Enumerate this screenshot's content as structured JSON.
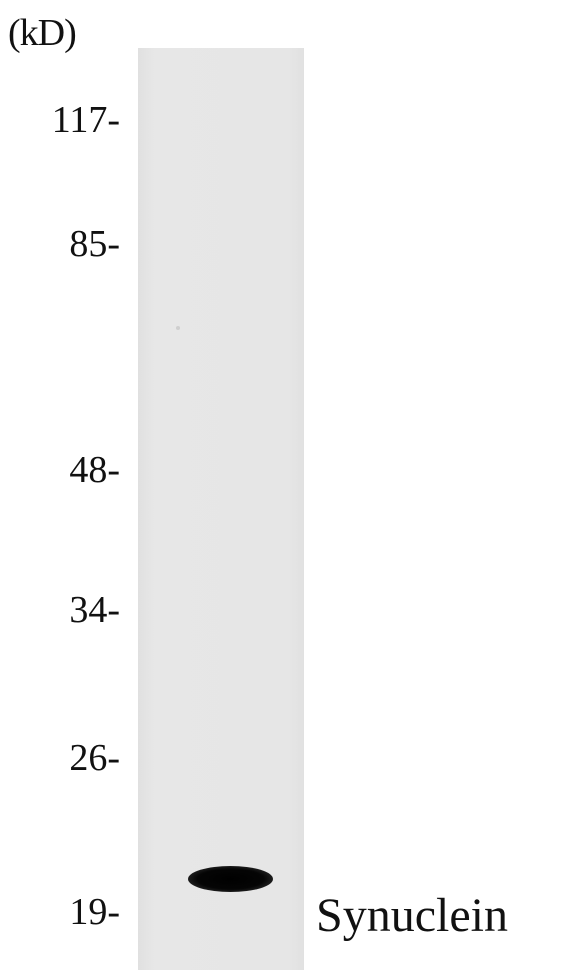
{
  "blot": {
    "unit_label": "(kD)",
    "markers": [
      "117-",
      "85-",
      "48-",
      "34-",
      "26-",
      "19-"
    ],
    "protein_label": "Synuclein"
  }
}
